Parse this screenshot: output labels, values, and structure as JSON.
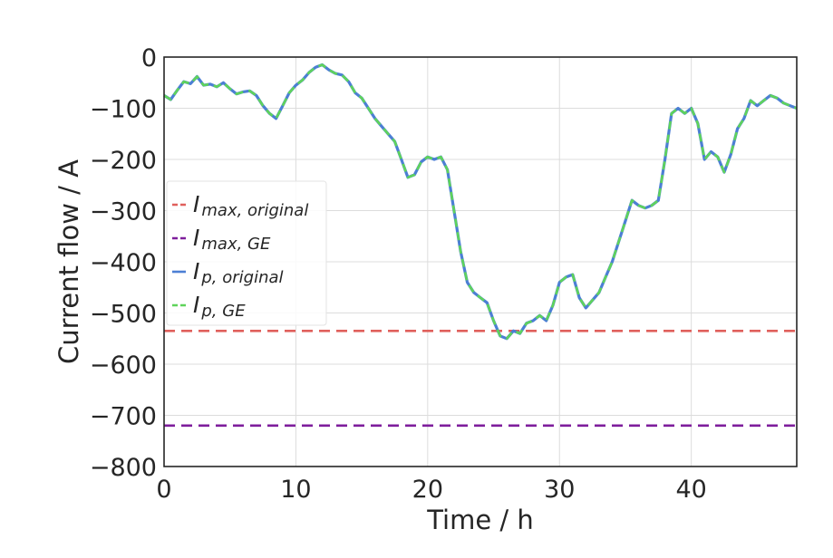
{
  "chart_data": {
    "type": "line",
    "title": "",
    "xlabel": "Time / h",
    "ylabel": "Current flow / A",
    "xlim": [
      0,
      48
    ],
    "ylim": [
      -800,
      0
    ],
    "xticks": [
      0,
      10,
      20,
      30,
      40
    ],
    "yticks": [
      0,
      -100,
      -200,
      -300,
      -400,
      -500,
      -600,
      -700,
      -800
    ],
    "xtick_labels": [
      "0",
      "10",
      "20",
      "30",
      "40"
    ],
    "ytick_labels": [
      "0",
      "−100",
      "−200",
      "−300",
      "−400",
      "−500",
      "−600",
      "−700",
      "−800"
    ],
    "grid": true,
    "legend_position": "center-left",
    "colors": {
      "imax_original": "#e0605c",
      "imax_ge": "#7e1e9c",
      "ip_original": "#4c7fd4",
      "ip_ge": "#5fd45a"
    },
    "series": [
      {
        "name_main": "I",
        "name_sub": "max, original",
        "style": "dashed",
        "color": "#e0605c",
        "x": [
          0,
          48
        ],
        "y": [
          -535,
          -535
        ]
      },
      {
        "name_main": "I",
        "name_sub": "max, GE",
        "style": "dashed",
        "color": "#7e1e9c",
        "x": [
          0,
          48
        ],
        "y": [
          -720,
          -720
        ]
      },
      {
        "name_main": "I",
        "name_sub": "p, original",
        "style": "solid",
        "color": "#4c7fd4",
        "x": [
          0,
          0.5,
          1,
          1.5,
          2,
          2.5,
          3,
          3.5,
          4,
          4.5,
          5,
          5.5,
          6,
          6.5,
          7,
          7.5,
          8,
          8.5,
          9,
          9.5,
          10,
          10.5,
          11,
          11.5,
          12,
          12.5,
          13,
          13.5,
          14,
          14.5,
          15,
          15.5,
          16,
          16.5,
          17,
          17.5,
          18,
          18.5,
          19,
          19.5,
          20,
          20.5,
          21,
          21.5,
          22,
          22.5,
          23,
          23.5,
          24,
          24.5,
          25,
          25.5,
          26,
          26.5,
          27,
          27.5,
          28,
          28.5,
          29,
          29.5,
          30,
          30.5,
          31,
          31.5,
          32,
          32.5,
          33,
          33.5,
          34,
          34.5,
          35,
          35.5,
          36,
          36.5,
          37,
          37.5,
          38,
          38.5,
          39,
          39.5,
          40,
          40.5,
          41,
          41.5,
          42,
          42.5,
          43,
          43.5,
          44,
          44.5,
          45,
          45.5,
          46,
          46.5,
          47,
          47.5,
          48
        ],
        "y": [
          -75,
          -83,
          -65,
          -48,
          -52,
          -38,
          -55,
          -53,
          -58,
          -50,
          -62,
          -72,
          -68,
          -66,
          -75,
          -95,
          -110,
          -120,
          -95,
          -70,
          -55,
          -45,
          -30,
          -20,
          -15,
          -25,
          -32,
          -35,
          -48,
          -70,
          -80,
          -100,
          -120,
          -135,
          -150,
          -165,
          -200,
          -235,
          -230,
          -205,
          -195,
          -200,
          -195,
          -220,
          -300,
          -380,
          -440,
          -460,
          -470,
          -480,
          -515,
          -545,
          -550,
          -535,
          -540,
          -520,
          -515,
          -505,
          -515,
          -485,
          -440,
          -430,
          -425,
          -470,
          -490,
          -475,
          -460,
          -430,
          -400,
          -360,
          -320,
          -280,
          -290,
          -295,
          -290,
          -280,
          -200,
          -110,
          -100,
          -110,
          -100,
          -130,
          -200,
          -185,
          -195,
          -225,
          -190,
          -140,
          -120,
          -85,
          -95,
          -85,
          -75,
          -80,
          -90,
          -95,
          -100
        ]
      },
      {
        "name_main": "I",
        "name_sub": "p, GE",
        "style": "dashed",
        "color": "#5fd45a",
        "x": [
          0,
          0.5,
          1,
          1.5,
          2,
          2.5,
          3,
          3.5,
          4,
          4.5,
          5,
          5.5,
          6,
          6.5,
          7,
          7.5,
          8,
          8.5,
          9,
          9.5,
          10,
          10.5,
          11,
          11.5,
          12,
          12.5,
          13,
          13.5,
          14,
          14.5,
          15,
          15.5,
          16,
          16.5,
          17,
          17.5,
          18,
          18.5,
          19,
          19.5,
          20,
          20.5,
          21,
          21.5,
          22,
          22.5,
          23,
          23.5,
          24,
          24.5,
          25,
          25.5,
          26,
          26.5,
          27,
          27.5,
          28,
          28.5,
          29,
          29.5,
          30,
          30.5,
          31,
          31.5,
          32,
          32.5,
          33,
          33.5,
          34,
          34.5,
          35,
          35.5,
          36,
          36.5,
          37,
          37.5,
          38,
          38.5,
          39,
          39.5,
          40,
          40.5,
          41,
          41.5,
          42,
          42.5,
          43,
          43.5,
          44,
          44.5,
          45,
          45.5,
          46,
          46.5,
          47,
          47.5,
          48
        ],
        "y": [
          -75,
          -83,
          -65,
          -48,
          -52,
          -38,
          -55,
          -53,
          -58,
          -50,
          -62,
          -72,
          -68,
          -66,
          -75,
          -95,
          -110,
          -120,
          -95,
          -70,
          -55,
          -45,
          -30,
          -20,
          -15,
          -25,
          -32,
          -35,
          -48,
          -70,
          -80,
          -100,
          -120,
          -135,
          -150,
          -165,
          -200,
          -235,
          -230,
          -205,
          -195,
          -200,
          -195,
          -220,
          -300,
          -380,
          -440,
          -460,
          -470,
          -480,
          -515,
          -545,
          -550,
          -535,
          -540,
          -520,
          -515,
          -505,
          -515,
          -485,
          -440,
          -430,
          -425,
          -470,
          -490,
          -475,
          -460,
          -430,
          -400,
          -360,
          -320,
          -280,
          -290,
          -295,
          -290,
          -280,
          -200,
          -110,
          -100,
          -110,
          -100,
          -130,
          -200,
          -185,
          -195,
          -225,
          -190,
          -140,
          -120,
          -85,
          -95,
          -85,
          -75,
          -80,
          -90,
          -95,
          -100
        ]
      }
    ]
  }
}
